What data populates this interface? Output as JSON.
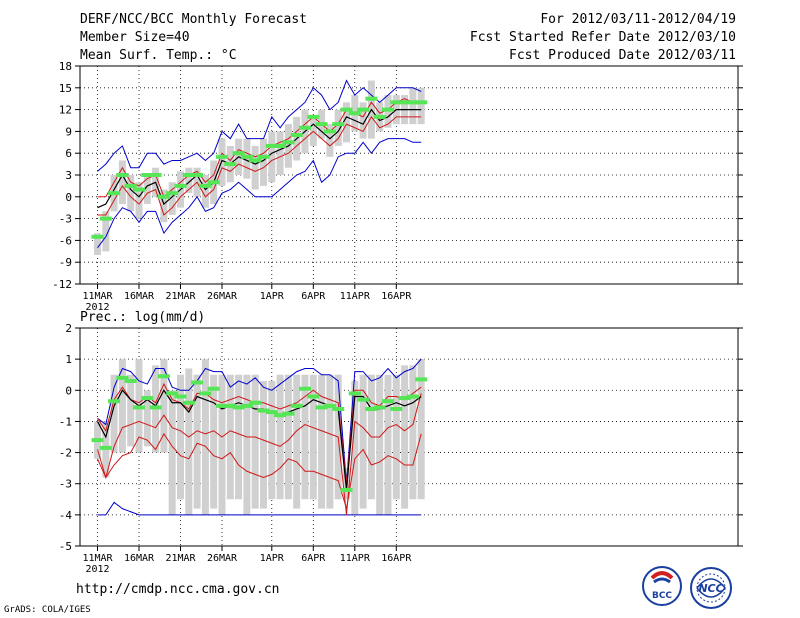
{
  "header": {
    "title": "DERF/NCC/BCC Monthly Forecast",
    "member_size": "Member Size=40",
    "variable": "Mean Surf. Temp.: °C",
    "period": "For 2012/03/11-2012/04/19",
    "started": "Fcst Started Refer Date 2012/03/10",
    "produced": "Fcst Produced Date 2012/03/11"
  },
  "footer": {
    "url": "http://cmdp.ncc.cma.gov.cn",
    "grads": "GrADS: COLA/IGES",
    "logo_bcc": "BCC",
    "logo_ncc": "NCC"
  },
  "colors": {
    "box": "#d0d0d0",
    "median": "#55e655",
    "mean": "#000000",
    "inner": "#d01818",
    "outer": "#0000cc",
    "grid": "#000000"
  },
  "chart_data": [
    {
      "type": "line",
      "name": "temperature",
      "ylabel": "Mean Surf. Temp.: °C",
      "ylim": [
        -12,
        18
      ],
      "yticks": [
        18,
        15,
        12,
        9,
        6,
        3,
        0,
        -3,
        -6,
        -9,
        -12
      ],
      "xticks": [
        {
          "day": 1,
          "label": "11MAR"
        },
        {
          "day": 6,
          "label": "16MAR"
        },
        {
          "day": 11,
          "label": "21MAR"
        },
        {
          "day": 16,
          "label": "26MAR"
        },
        {
          "day": 22,
          "label": "1APR"
        },
        {
          "day": 27,
          "label": "6APR"
        },
        {
          "day": 32,
          "label": "11APR"
        },
        {
          "day": 37,
          "label": "16APR"
        }
      ],
      "year_label": "2012",
      "days": [
        1,
        2,
        3,
        4,
        5,
        6,
        7,
        8,
        9,
        10,
        11,
        12,
        13,
        14,
        15,
        16,
        17,
        18,
        19,
        20,
        21,
        22,
        23,
        24,
        25,
        26,
        27,
        28,
        29,
        30,
        31,
        32,
        33,
        34,
        35,
        36,
        37,
        38,
        39,
        40
      ],
      "box_low": [
        -8,
        -7.5,
        -2,
        -1,
        -2,
        -3,
        -1,
        0,
        -3.5,
        -2.5,
        -1.5,
        0.5,
        0,
        -1.5,
        -1,
        1.5,
        2,
        3,
        2.5,
        1,
        1.5,
        2,
        3,
        4,
        5,
        6,
        7,
        8,
        5.5,
        7,
        7.5,
        9,
        8,
        8,
        9,
        9.5,
        10,
        10,
        10,
        10
      ],
      "box_high": [
        -5,
        -2,
        3,
        5,
        3,
        2,
        3,
        4,
        1,
        2,
        3.5,
        4,
        4,
        3,
        5,
        8,
        7,
        8,
        8,
        7,
        8,
        9,
        9,
        10,
        11,
        12,
        11,
        12,
        10,
        12,
        13,
        14,
        13,
        16,
        13,
        14,
        14,
        14,
        15,
        15
      ],
      "median": [
        -5.5,
        -3,
        0.5,
        3,
        1.5,
        1,
        3,
        3,
        0,
        0.5,
        1.5,
        3,
        3,
        1.5,
        2,
        5.5,
        4.5,
        6,
        5.5,
        5,
        5.5,
        7,
        7,
        7.5,
        8.5,
        9.5,
        11,
        10,
        9,
        10,
        12,
        11.5,
        12,
        13.5,
        11,
        12,
        13,
        13,
        13,
        13
      ],
      "mean": [
        -1.5,
        -1,
        1,
        3,
        1,
        0,
        1.5,
        2,
        -1,
        0,
        1,
        2,
        3,
        1,
        2,
        5,
        4.5,
        5.5,
        5,
        4.5,
        5,
        6,
        6.5,
        7,
        8,
        9,
        10,
        9,
        8,
        9,
        11,
        10.5,
        10,
        12,
        10.5,
        11,
        12,
        12,
        12,
        12
      ],
      "inner_high": [
        0,
        0,
        2,
        4,
        2,
        1.5,
        2.5,
        3,
        0,
        1,
        2,
        3,
        3.5,
        2,
        3,
        6,
        5,
        6.5,
        6,
        5.5,
        6,
        7,
        7.5,
        8,
        9,
        10,
        11,
        10,
        9,
        10,
        12,
        11.5,
        11,
        13,
        11.5,
        12,
        13,
        13.5,
        13,
        13
      ],
      "inner_low": [
        -2.5,
        -2.5,
        -0.5,
        1.5,
        0,
        -1,
        0.5,
        1,
        -2.5,
        -1.5,
        0,
        1,
        2,
        0,
        1,
        4,
        3.5,
        4.5,
        4,
        3.5,
        4,
        5,
        5.5,
        6,
        7,
        8,
        9,
        8,
        7,
        8,
        10,
        9.5,
        9,
        11,
        9.5,
        10,
        11,
        11,
        11,
        11
      ],
      "outer_high": [
        3.5,
        4.5,
        6,
        7,
        4,
        4,
        6,
        6,
        4.5,
        5,
        5,
        5.5,
        6,
        5,
        6,
        9,
        8,
        10,
        8,
        8,
        8,
        11,
        9.5,
        11,
        12,
        13,
        15,
        14,
        12,
        13,
        16,
        14,
        15,
        14,
        13,
        14,
        15,
        15,
        15,
        14.5
      ],
      "outer_low": [
        -7,
        -5.5,
        -3,
        -1.5,
        -2,
        -3.5,
        -2,
        -2,
        -5,
        -3.5,
        -2.5,
        -1.5,
        0,
        -2,
        -1.5,
        0.5,
        1,
        2,
        1,
        0,
        0,
        0,
        1,
        2,
        3,
        3.5,
        5,
        2,
        3,
        5.5,
        6,
        6,
        7.5,
        6,
        7.5,
        8,
        8,
        8,
        7.5,
        7.5
      ]
    },
    {
      "type": "line",
      "name": "precipitation",
      "ylabel": "Prec.: log(mm/d)",
      "ylim": [
        -5,
        2
      ],
      "yticks": [
        2,
        1,
        0,
        -1,
        -2,
        -3,
        -4,
        -5
      ],
      "xticks": [
        {
          "day": 1,
          "label": "11MAR"
        },
        {
          "day": 6,
          "label": "16MAR"
        },
        {
          "day": 11,
          "label": "21MAR"
        },
        {
          "day": 16,
          "label": "26MAR"
        },
        {
          "day": 22,
          "label": "1APR"
        },
        {
          "day": 27,
          "label": "6APR"
        },
        {
          "day": 32,
          "label": "11APR"
        },
        {
          "day": 37,
          "label": "16APR"
        }
      ],
      "year_label": "2012",
      "days": [
        1,
        2,
        3,
        4,
        5,
        6,
        7,
        8,
        9,
        10,
        11,
        12,
        13,
        14,
        15,
        16,
        17,
        18,
        19,
        20,
        21,
        22,
        23,
        24,
        25,
        26,
        27,
        28,
        29,
        30,
        31,
        32,
        33,
        34,
        35,
        36,
        37,
        38,
        39,
        40
      ],
      "box_low": [
        -2.2,
        -2.8,
        -2,
        -2,
        -1.8,
        -2,
        -1.8,
        -2,
        -2,
        -4,
        -3.5,
        -4,
        -3.8,
        -4,
        -3.8,
        -4,
        -3.5,
        -3.5,
        -4,
        -3.8,
        -3.8,
        -3.5,
        -3.5,
        -3.5,
        -3.8,
        -3.5,
        -3.5,
        -3.8,
        -3.8,
        -3.5,
        -3.5,
        -4,
        -3.8,
        -3.5,
        -4,
        -4,
        -3.5,
        -3.8,
        -3.5,
        -3.5
      ],
      "box_high": [
        -1,
        -1,
        0.5,
        1,
        0.5,
        1,
        0,
        0.8,
        1,
        0,
        0.5,
        0.7,
        0.5,
        1,
        0.5,
        0.5,
        0.5,
        0.5,
        0.5,
        0.5,
        0.3,
        0.3,
        0.5,
        0.5,
        0.5,
        0.5,
        0.5,
        0.5,
        0.5,
        0.5,
        -2.5,
        0.3,
        0.5,
        0.5,
        0.5,
        0.5,
        0.5,
        0.8,
        0.8,
        1
      ],
      "median": [
        -1.6,
        -1.85,
        -0.35,
        0.4,
        0.3,
        -0.55,
        -0.25,
        -0.55,
        0.45,
        -0.1,
        -0.2,
        -0.4,
        0.25,
        -0.1,
        0.05,
        -0.5,
        -0.5,
        -0.55,
        -0.5,
        -0.4,
        -0.65,
        -0.7,
        -0.8,
        -0.75,
        -0.5,
        0.05,
        -0.2,
        -0.55,
        -0.5,
        -0.6,
        -3.2,
        -0.1,
        -0.3,
        -0.6,
        -0.55,
        -0.35,
        -0.6,
        -0.25,
        -0.2,
        0.35
      ],
      "mean": [
        -1,
        -1.5,
        -0.5,
        0,
        -0.3,
        -0.5,
        -0.3,
        -0.5,
        0,
        -0.4,
        -0.4,
        -0.7,
        -0.2,
        -0.3,
        -0.4,
        -0.6,
        -0.5,
        -0.4,
        -0.5,
        -0.6,
        -0.6,
        -0.7,
        -0.8,
        -0.7,
        -0.6,
        -0.5,
        -0.3,
        -0.4,
        -0.5,
        -0.6,
        -3.2,
        -0.2,
        -0.2,
        -0.6,
        -0.6,
        -0.5,
        -0.4,
        -0.5,
        -0.4,
        -0.2
      ],
      "inner_high": [
        -0.9,
        -1.3,
        -0.3,
        0.1,
        -0.3,
        -0.4,
        -0.2,
        -0.4,
        0.2,
        -0.3,
        -0.4,
        -0.6,
        -0.1,
        -0.1,
        -0.3,
        -0.4,
        -0.3,
        -0.2,
        -0.3,
        -0.4,
        -0.4,
        -0.5,
        -0.6,
        -0.5,
        -0.4,
        -0.2,
        0,
        -0.2,
        -0.3,
        -0.4,
        -3,
        0,
        0,
        -0.4,
        -0.5,
        -0.2,
        -0.2,
        -0.3,
        -0.1,
        0.1
      ],
      "inner_low": [
        -1.9,
        -2.8,
        -1.8,
        -1.2,
        -1.1,
        -1,
        -1.1,
        -1.2,
        -0.8,
        -1.2,
        -1.3,
        -1.5,
        -1.3,
        -1.4,
        -1.3,
        -1.5,
        -1.3,
        -1.4,
        -1.5,
        -1.5,
        -1.6,
        -1.7,
        -1.8,
        -1.6,
        -1.3,
        -1.1,
        -1.2,
        -1.3,
        -1.4,
        -1.5,
        -4,
        -1,
        -1.2,
        -1.5,
        -1.5,
        -1.2,
        -1.1,
        -1.3,
        -1.1,
        -0.1
      ],
      "outer_high": [
        -0.9,
        -1.1,
        0.1,
        0.7,
        0.6,
        0.3,
        0.2,
        0.7,
        0.7,
        0.1,
        0,
        0,
        0.3,
        0.7,
        0.6,
        0.6,
        0.1,
        0.3,
        0.2,
        0.4,
        0.1,
        0,
        0.2,
        0.4,
        0.6,
        0.7,
        0.7,
        0.5,
        0.5,
        0.3,
        -3,
        0.6,
        0.6,
        0.3,
        0.4,
        0.7,
        0.4,
        0.6,
        0.7,
        1
      ],
      "outer_low": [
        -4,
        -4,
        -3.6,
        -3.8,
        -3.9,
        -4,
        -4,
        -4,
        -4,
        -4,
        -4,
        -4,
        -4,
        -4,
        -4,
        -4,
        -4,
        -4,
        -4,
        -4,
        -4,
        -4,
        -4,
        -4,
        -4,
        -4,
        -4,
        -4,
        -4,
        -4,
        -4,
        -4,
        -4,
        -4,
        -4,
        -4,
        -4,
        -4,
        -4,
        -4
      ],
      "red_low2": [
        -2.2,
        -2.8,
        -2.4,
        -2.1,
        -2,
        -1.5,
        -1.6,
        -1.9,
        -1.4,
        -1.8,
        -2.1,
        -2.2,
        -1.7,
        -1.8,
        -2.1,
        -2.2,
        -2,
        -2.4,
        -2.6,
        -2.7,
        -2.8,
        -2.7,
        -2.5,
        -2.2,
        -2.3,
        -2.6,
        -2.6,
        -2.7,
        -2.8,
        -2.9,
        -3.8,
        -2.2,
        -1.9,
        -2.4,
        -2.3,
        -2.1,
        -2.2,
        -2.4,
        -2.4,
        -1.4
      ]
    }
  ]
}
